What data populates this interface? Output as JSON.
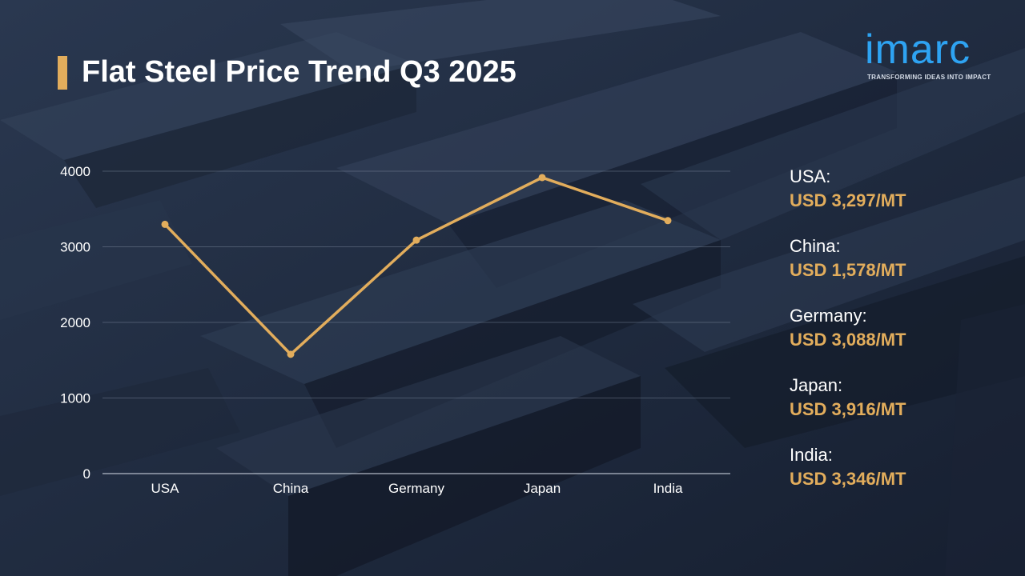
{
  "header": {
    "title": "Flat Steel Price Trend Q3 2025"
  },
  "logo": {
    "word": "imarc",
    "tagline": "TRANSFORMING IDEAS INTO IMPACT"
  },
  "colors": {
    "accent": "#e2ad5c",
    "logo_blue": "#2ea3f2",
    "background": "#1f2a3e",
    "text": "#ffffff"
  },
  "chart_data": {
    "type": "line",
    "title": "Flat Steel Price Trend Q3 2025",
    "categories": [
      "USA",
      "China",
      "Germany",
      "Japan",
      "India"
    ],
    "values": [
      3297,
      1578,
      3088,
      3916,
      3346
    ],
    "yticks": [
      "0",
      "1000",
      "2000",
      "3000",
      "4000"
    ],
    "ylim": [
      0,
      4000
    ],
    "grid": true,
    "legend": "none"
  },
  "legend": {
    "items": [
      {
        "country": "USA:",
        "value": "USD 3,297/MT"
      },
      {
        "country": "China:",
        "value": "USD 1,578/MT"
      },
      {
        "country": "Germany:",
        "value": "USD 3,088/MT"
      },
      {
        "country": "Japan:",
        "value": "USD 3,916/MT"
      },
      {
        "country": "India:",
        "value": "USD 3,346/MT"
      }
    ]
  }
}
